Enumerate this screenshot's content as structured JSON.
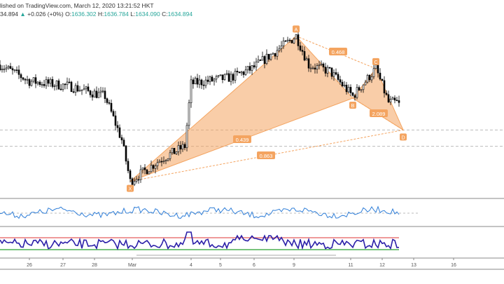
{
  "header": {
    "line1": "lished on TradingView.com, March 12, 2020 13:21:52 HKT",
    "last": "34.894",
    "change": "+0.026 (+0%)",
    "o_label": "O:",
    "o": "1636.302",
    "h_label": "H:",
    "h": "1636.784",
    "l_label": "L:",
    "l": "1634.090",
    "c_label": "C:",
    "c": "1634.894"
  },
  "chart_data": {
    "type": "candlestick",
    "title": "",
    "price_range": [
      1560,
      1700
    ],
    "path": [
      [
        0,
        1665
      ],
      [
        14,
        1652
      ],
      [
        33,
        1648
      ],
      [
        50,
        1640
      ],
      [
        58,
        1605
      ],
      [
        62,
        1572
      ],
      [
        77,
        1590
      ],
      [
        88,
        1600
      ],
      [
        91,
        1650
      ],
      [
        110,
        1655
      ],
      [
        120,
        1662
      ],
      [
        133,
        1678
      ],
      [
        141,
        1688
      ],
      [
        147,
        1665
      ],
      [
        157,
        1660
      ],
      [
        168,
        1640
      ],
      [
        179,
        1662
      ],
      [
        185,
        1635
      ],
      [
        190,
        1634.9
      ]
    ],
    "pattern": {
      "points": [
        {
          "label": "X",
          "bar": 62,
          "price": 1572
        },
        {
          "label": "A",
          "bar": 141,
          "price": 1688
        },
        {
          "label": "B",
          "bar": 168,
          "price": 1638.4
        },
        {
          "label": "C",
          "bar": 179,
          "price": 1662
        },
        {
          "label": "D",
          "bar": 192,
          "price": 1613
        }
      ],
      "ratios": [
        {
          "label": "0.468",
          "between": "XA-AB"
        },
        {
          "label": "0.439",
          "between": "XB"
        },
        {
          "label": "0.863",
          "between": "XD"
        },
        {
          "label": "2.089",
          "between": "BD"
        }
      ],
      "color": "#f4a460"
    },
    "x_ticks": [
      {
        "label": "26",
        "bar": 14
      },
      {
        "label": "27",
        "bar": 30
      },
      {
        "label": "28",
        "bar": 45
      },
      {
        "label": "Mar",
        "bar": 63
      },
      {
        "label": "4",
        "bar": 91
      },
      {
        "label": "5",
        "bar": 105
      },
      {
        "label": "6",
        "bar": 121
      },
      {
        "label": "9",
        "bar": 140
      },
      {
        "label": "11",
        "bar": 167
      },
      {
        "label": "12",
        "bar": 182
      },
      {
        "label": "13",
        "bar": 197
      },
      {
        "label": "16",
        "bar": 216
      }
    ],
    "h_levels": [
      1613,
      1600
    ],
    "colors": {
      "up": "#ffffff",
      "down": "#000000",
      "osc1": "#2f7ed8",
      "osc2": "#2a1fa8",
      "upper": "#ef9a9a",
      "lower": "#4caf50"
    }
  }
}
